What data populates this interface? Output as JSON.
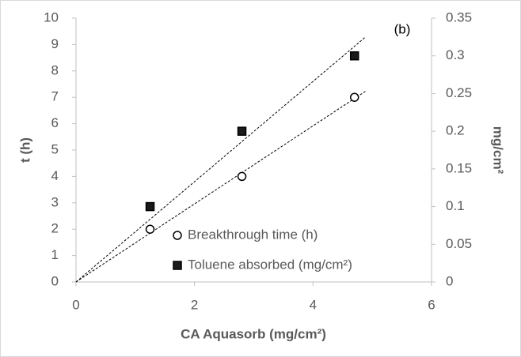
{
  "chart_data": {
    "type": "scatter",
    "annotation": "(b)",
    "x_label": "CA Aquasorb (mg/cm²)",
    "y_label": "t (h)",
    "y2_label": "mg/cm²",
    "xlim": [
      0,
      6
    ],
    "xticks": [
      0,
      2,
      4,
      6
    ],
    "ylim": [
      0,
      10
    ],
    "yticks": [
      0,
      1,
      2,
      3,
      4,
      5,
      6,
      7,
      8,
      9,
      10
    ],
    "y2lim": [
      0,
      0.35
    ],
    "y2ticks": [
      0,
      0.05,
      0.1,
      0.15,
      0.2,
      0.25,
      0.3,
      0.35
    ],
    "trendline": true,
    "series": [
      {
        "name": "Breakthrough time (h)",
        "marker": "circle",
        "color": "#000000",
        "x": [
          1.25,
          2.8,
          4.7
        ],
        "values": [
          2,
          4,
          7
        ]
      },
      {
        "name": "Toluene absorbed (mg/cm²)",
        "marker": "square",
        "color": "#1a1a1a",
        "axis": "y2",
        "x": [
          1.25,
          2.8,
          4.7
        ],
        "values": [
          0.1,
          0.2,
          0.3
        ]
      }
    ]
  }
}
